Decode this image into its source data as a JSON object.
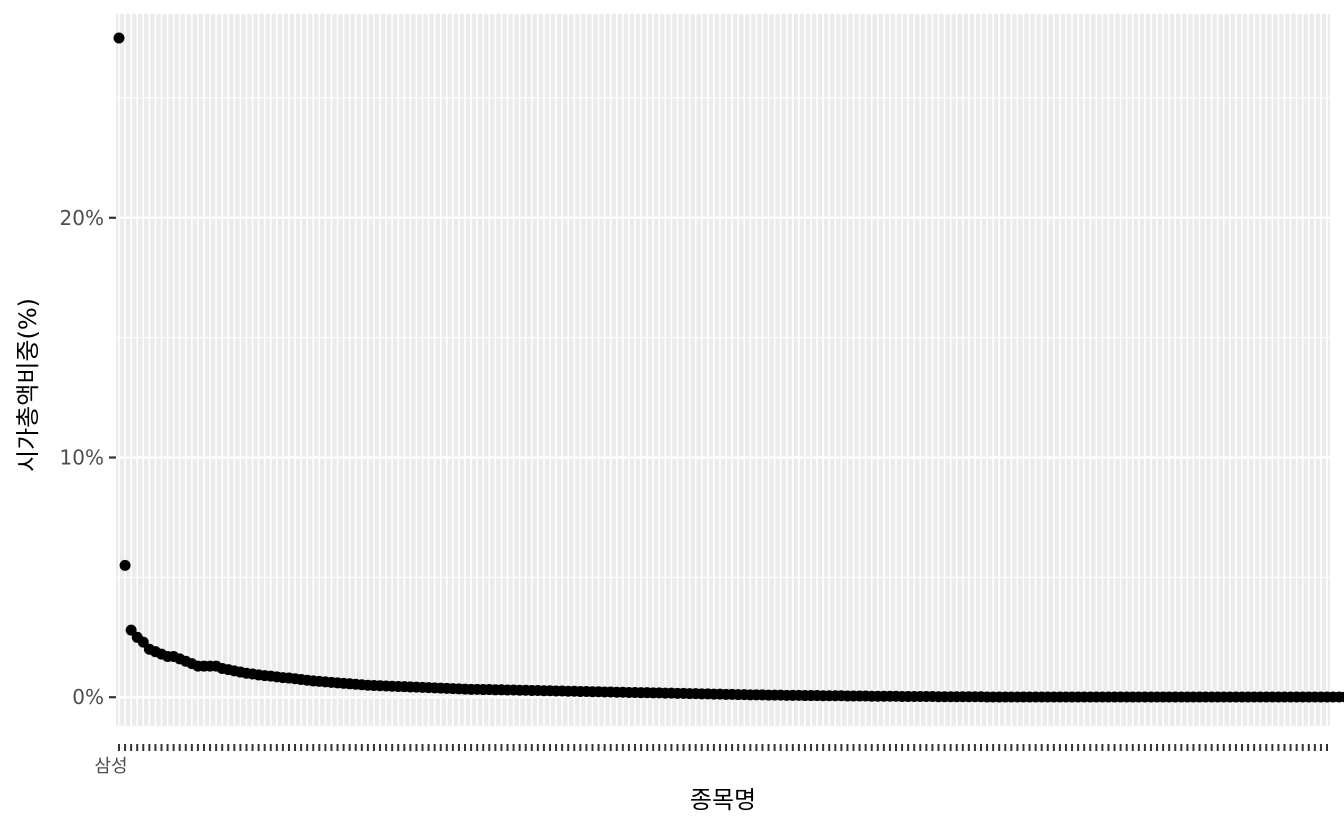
{
  "chart_data": {
    "type": "scatter",
    "title": "",
    "xlabel": "종목명",
    "ylabel": "시가총액비중(%)",
    "y_unit": "%",
    "ylim": [
      -1.2,
      28.5
    ],
    "y_ticks": [
      0,
      10,
      20
    ],
    "y_tick_labels": [
      "0%",
      "10%",
      "20%"
    ],
    "grid": true,
    "legend": "none",
    "point_color": "#000000",
    "panel_color": "#ebebeb",
    "grid_color": "#ffffff",
    "first_category_label": "삼성",
    "category_count": 200,
    "values": [
      27.5,
      5.5,
      2.8,
      2.5,
      2.3,
      2.0,
      1.9,
      1.8,
      1.7,
      1.7,
      1.6,
      1.5,
      1.4,
      1.3,
      1.3,
      1.3,
      1.3,
      1.2,
      1.15,
      1.1,
      1.05,
      1.0,
      0.97,
      0.93,
      0.9,
      0.88,
      0.85,
      0.82,
      0.8,
      0.77,
      0.74,
      0.71,
      0.68,
      0.66,
      0.64,
      0.62,
      0.6,
      0.58,
      0.56,
      0.54,
      0.52,
      0.5,
      0.49,
      0.48,
      0.47,
      0.46,
      0.45,
      0.44,
      0.43,
      0.42,
      0.41,
      0.4,
      0.39,
      0.38,
      0.37,
      0.36,
      0.35,
      0.34,
      0.33,
      0.33,
      0.32,
      0.32,
      0.31,
      0.31,
      0.3,
      0.3,
      0.29,
      0.29,
      0.28,
      0.28,
      0.27,
      0.27,
      0.26,
      0.26,
      0.25,
      0.25,
      0.24,
      0.24,
      0.23,
      0.23,
      0.22,
      0.22,
      0.21,
      0.21,
      0.2,
      0.2,
      0.19,
      0.19,
      0.18,
      0.18,
      0.17,
      0.17,
      0.16,
      0.16,
      0.15,
      0.15,
      0.14,
      0.14,
      0.13,
      0.13,
      0.12,
      0.12,
      0.11,
      0.11,
      0.1,
      0.1,
      0.1,
      0.09,
      0.09,
      0.09,
      0.08,
      0.08,
      0.08,
      0.07,
      0.07,
      0.07,
      0.06,
      0.06,
      0.06,
      0.06,
      0.05,
      0.05,
      0.05,
      0.05,
      0.04,
      0.04,
      0.04,
      0.04,
      0.04,
      0.03,
      0.03,
      0.03,
      0.03,
      0.03,
      0.03,
      0.02,
      0.02,
      0.02,
      0.02,
      0.02,
      0.02,
      0.02,
      0.02,
      0.01,
      0.01,
      0.01,
      0.01,
      0.01,
      0.01,
      0.01,
      0.01,
      0.01,
      0.01,
      0.01,
      0.01,
      0.01,
      0.01,
      0.01,
      0.01,
      0.01,
      0.01,
      0.01,
      0.01,
      0.01,
      0.01,
      0.01,
      0.01,
      0.01,
      0.01,
      0.01,
      0.01,
      0.01,
      0.01,
      0.01,
      0.01,
      0.01,
      0.01,
      0.01,
      0.01,
      0.01,
      0.01,
      0.01,
      0.01,
      0.01,
      0.01,
      0.01,
      0.01,
      0.01,
      0.01,
      0.01,
      0.01,
      0.01,
      0.01,
      0.01,
      0.01,
      0.01,
      0.01,
      0.01,
      0.01,
      0.01,
      0.01,
      0.01,
      0.01,
      0.01
    ]
  }
}
